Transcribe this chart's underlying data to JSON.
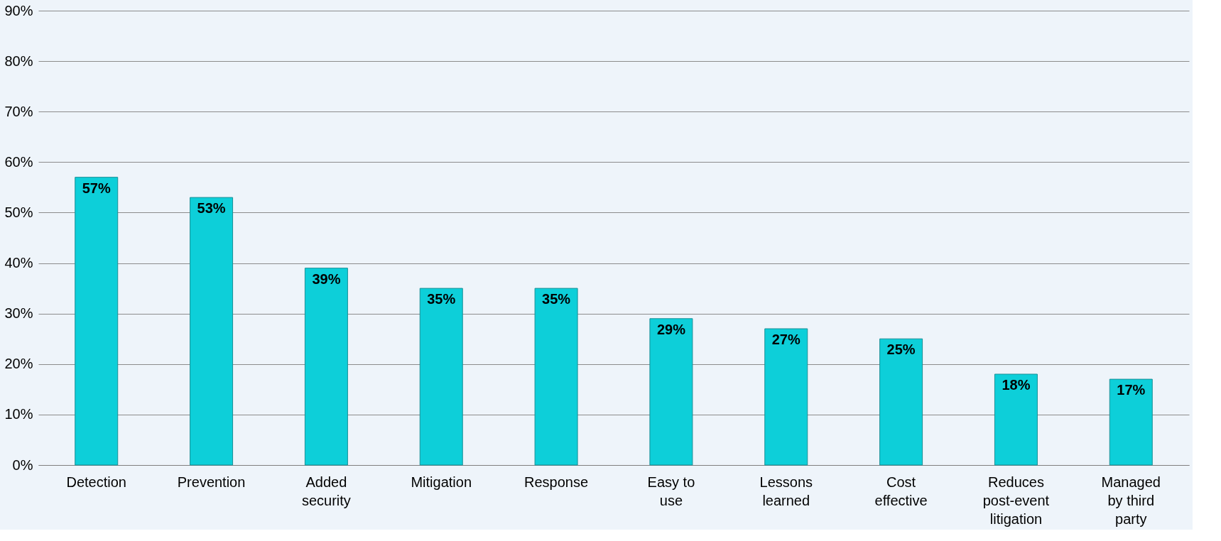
{
  "chart_data": {
    "type": "bar",
    "categories": [
      "Detection",
      "Prevention",
      "Added security",
      "Mitigation",
      "Response",
      "Easy to use",
      "Lessons learned",
      "Cost effective",
      "Reduces post-event litigation",
      "Managed by third party"
    ],
    "values": [
      57,
      53,
      39,
      35,
      35,
      29,
      27,
      25,
      18,
      17
    ],
    "value_labels": [
      "57%",
      "53%",
      "39%",
      "35%",
      "35%",
      "29%",
      "27%",
      "25%",
      "18%",
      "17%"
    ],
    "color": "#0dcfd9",
    "ylim": [
      0,
      90
    ],
    "yticks": [
      {
        "value": 0,
        "label": "0%"
      },
      {
        "value": 10,
        "label": "10%"
      },
      {
        "value": 20,
        "label": "20%"
      },
      {
        "value": 30,
        "label": "30%"
      },
      {
        "value": 40,
        "label": "40%"
      },
      {
        "value": 50,
        "label": "50%"
      },
      {
        "value": 60,
        "label": "60%"
      },
      {
        "value": 70,
        "label": "70%"
      },
      {
        "value": 80,
        "label": "80%"
      },
      {
        "value": 90,
        "label": "90%"
      }
    ],
    "grid": "y"
  }
}
